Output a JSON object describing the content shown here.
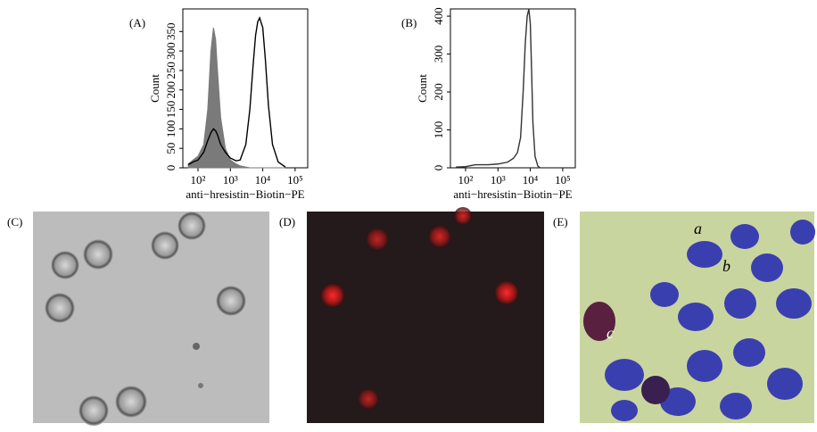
{
  "chart_data": [
    {
      "type": "line",
      "panel": "(A)",
      "xlabel": "anti−hresistin−Biotin−PE",
      "ylabel": "Count",
      "xlog": true,
      "xlim": [
        34,
        245000
      ],
      "xticks": [
        {
          "value": 100,
          "label": "10²"
        },
        {
          "value": 1000,
          "label": "10³"
        },
        {
          "value": 10000,
          "label": "10⁴"
        },
        {
          "value": 100000,
          "label": "10⁵"
        }
      ],
      "ylim": [
        0,
        408
      ],
      "yticks": [
        0,
        50,
        100,
        150,
        200,
        250,
        300,
        350
      ],
      "x": [
        50,
        70,
        100,
        150,
        200,
        250,
        300,
        350,
        400,
        500,
        700,
        1000,
        1500,
        2000,
        3000,
        4000,
        5000,
        6000,
        7000,
        8000,
        10000,
        12000,
        15000,
        20000,
        30000,
        50000
      ],
      "series": [
        {
          "color": "#7a7a7a",
          "fill": true,
          "values": [
            10,
            20,
            30,
            60,
            150,
            300,
            360,
            330,
            250,
            130,
            50,
            20,
            10,
            5,
            2,
            0,
            0,
            0,
            0,
            0,
            0,
            0,
            0,
            0,
            0,
            0
          ]
        },
        {
          "color": "#000000",
          "fill": false,
          "values": [
            8,
            15,
            20,
            40,
            70,
            90,
            100,
            95,
            85,
            60,
            40,
            25,
            18,
            20,
            60,
            150,
            260,
            340,
            375,
            385,
            360,
            280,
            160,
            60,
            15,
            2
          ]
        }
      ]
    },
    {
      "type": "line",
      "panel": "(B)",
      "xlabel": "anti−hresistin−Biotin−PE",
      "ylabel": "Count",
      "xlog": true,
      "xlim": [
        34,
        245000
      ],
      "xticks": [
        {
          "value": 100,
          "label": "10²"
        },
        {
          "value": 1000,
          "label": "10³"
        },
        {
          "value": 10000,
          "label": "10⁴"
        },
        {
          "value": 100000,
          "label": "10⁵"
        }
      ],
      "ylim": [
        0,
        419
      ],
      "yticks": [
        0,
        100,
        200,
        300,
        400
      ],
      "x": [
        50,
        100,
        200,
        500,
        1000,
        2000,
        3000,
        4000,
        5000,
        6000,
        7000,
        8000,
        9000,
        10000,
        11000,
        12000,
        14000,
        17000,
        20000
      ],
      "series": [
        {
          "color": "#333333",
          "fill": false,
          "values": [
            2,
            3,
            8,
            8,
            10,
            15,
            25,
            40,
            80,
            200,
            330,
            400,
            419,
            380,
            250,
            120,
            30,
            5,
            0
          ]
        }
      ]
    }
  ],
  "panels": [
    {
      "label": "(C)"
    },
    {
      "label": "(D)"
    },
    {
      "label": "(E)",
      "annotations": [
        "a",
        "b",
        "c"
      ]
    }
  ]
}
